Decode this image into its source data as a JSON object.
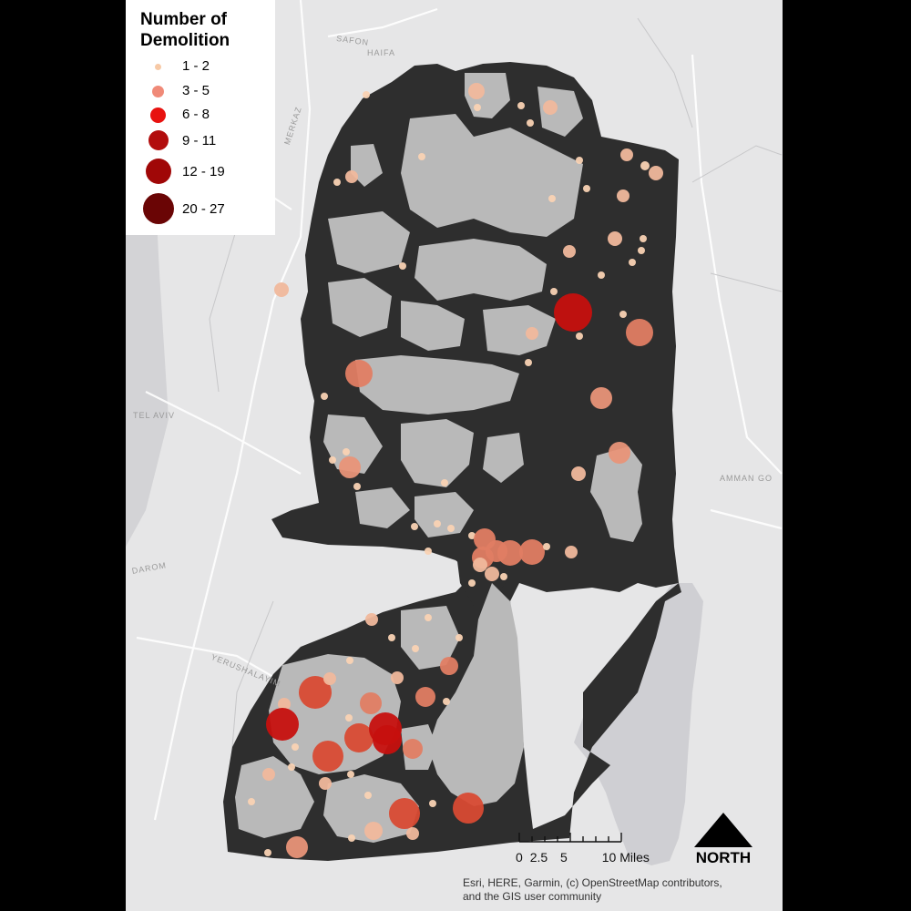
{
  "legend": {
    "title_line1": "Number of",
    "title_line2": "Demolition",
    "classes": [
      {
        "label": "1 - 2",
        "color": "#f7c9a6"
      },
      {
        "label": "3 - 5",
        "color": "#f08a78"
      },
      {
        "label": "6 - 8",
        "color": "#e8120f"
      },
      {
        "label": "9 - 11",
        "color": "#b20d0d"
      },
      {
        "label": "12 - 19",
        "color": "#a00707"
      },
      {
        "label": "20 - 27",
        "color": "#6a0505"
      }
    ]
  },
  "basemap_labels": [
    "SAFON",
    "HAIFA",
    "MERKAZ",
    "TEL AVIV",
    "DAROM",
    "YERUSHALAYIM",
    "AMMAN GO"
  ],
  "scale": {
    "labels": [
      "0",
      "2.5",
      "5",
      "10 Miles"
    ]
  },
  "north_arrow": {
    "label": "NORTH"
  },
  "attribution": {
    "line1": "Esri, HERE, Garmin, (c) OpenStreetMap contributors,",
    "line2": "and the GIS user community"
  },
  "colors": {
    "land": "#e6e6e7",
    "westbank_dark": "#2e2e2e",
    "areas_ab": "#b9b9b9",
    "water": "#cfcfd3"
  }
}
